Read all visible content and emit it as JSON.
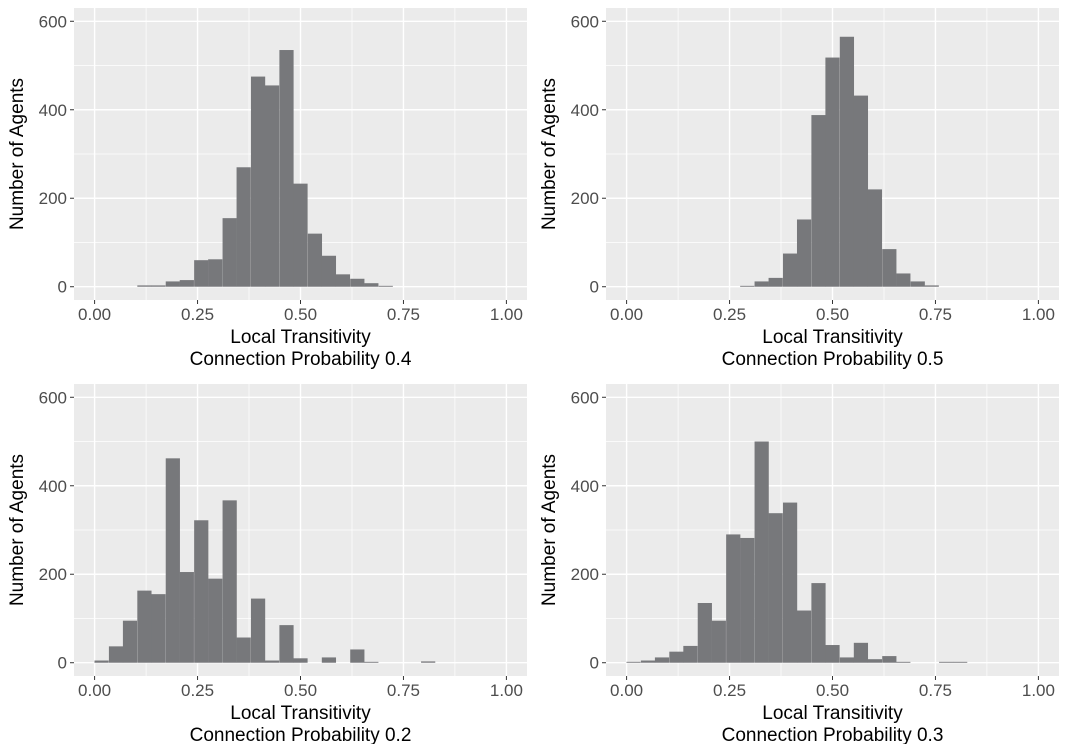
{
  "colors": {
    "panel_background": "#ebebeb",
    "grid_major": "#ffffff",
    "bar_fill": "#77787b",
    "tick_text": "#4d4d4d",
    "title_text": "#000000"
  },
  "chart_data": [
    {
      "type": "bar",
      "xlabel": "Local Transitivity",
      "xlabel2": "Connection Probability 0.4",
      "ylabel": "Number of Agents",
      "xlim": [
        -0.05,
        1.05
      ],
      "ylim": [
        -30,
        630
      ],
      "xticks": [
        0,
        0.25,
        0.5,
        0.75,
        1
      ],
      "xtick_labels": [
        "0.00",
        "0.25",
        "0.50",
        "0.75",
        "1.00"
      ],
      "yticks": [
        0,
        200,
        400,
        600
      ],
      "ytick_labels": [
        "0",
        "200",
        "400",
        "600"
      ],
      "grid": true,
      "bin_width": 0.0345,
      "bins": [
        {
          "x": 0.121,
          "y": 3
        },
        {
          "x": 0.155,
          "y": 3
        },
        {
          "x": 0.19,
          "y": 12
        },
        {
          "x": 0.224,
          "y": 15
        },
        {
          "x": 0.259,
          "y": 60
        },
        {
          "x": 0.293,
          "y": 62
        },
        {
          "x": 0.328,
          "y": 155
        },
        {
          "x": 0.362,
          "y": 270
        },
        {
          "x": 0.397,
          "y": 475
        },
        {
          "x": 0.431,
          "y": 455
        },
        {
          "x": 0.466,
          "y": 535
        },
        {
          "x": 0.5,
          "y": 233
        },
        {
          "x": 0.535,
          "y": 120
        },
        {
          "x": 0.569,
          "y": 70
        },
        {
          "x": 0.603,
          "y": 28
        },
        {
          "x": 0.638,
          "y": 18
        },
        {
          "x": 0.672,
          "y": 8
        },
        {
          "x": 0.707,
          "y": 2
        }
      ]
    },
    {
      "type": "bar",
      "xlabel": "Local Transitivity",
      "xlabel2": "Connection Probability 0.5",
      "ylabel": "Number of Agents",
      "xlim": [
        -0.05,
        1.05
      ],
      "ylim": [
        -30,
        630
      ],
      "xticks": [
        0,
        0.25,
        0.5,
        0.75,
        1
      ],
      "xtick_labels": [
        "0.00",
        "0.25",
        "0.50",
        "0.75",
        "1.00"
      ],
      "yticks": [
        0,
        200,
        400,
        600
      ],
      "ytick_labels": [
        "0",
        "200",
        "400",
        "600"
      ],
      "grid": true,
      "bin_width": 0.0345,
      "bins": [
        {
          "x": 0.293,
          "y": 2
        },
        {
          "x": 0.328,
          "y": 12
        },
        {
          "x": 0.362,
          "y": 20
        },
        {
          "x": 0.397,
          "y": 75
        },
        {
          "x": 0.431,
          "y": 152
        },
        {
          "x": 0.466,
          "y": 388
        },
        {
          "x": 0.5,
          "y": 518
        },
        {
          "x": 0.535,
          "y": 565
        },
        {
          "x": 0.569,
          "y": 432
        },
        {
          "x": 0.603,
          "y": 220
        },
        {
          "x": 0.638,
          "y": 85
        },
        {
          "x": 0.672,
          "y": 30
        },
        {
          "x": 0.707,
          "y": 12
        },
        {
          "x": 0.741,
          "y": 3
        }
      ]
    },
    {
      "type": "bar",
      "xlabel": "Local Transitivity",
      "xlabel2": "Connection Probability 0.2",
      "ylabel": "Number of Agents",
      "xlim": [
        -0.05,
        1.05
      ],
      "ylim": [
        -30,
        630
      ],
      "xticks": [
        0,
        0.25,
        0.5,
        0.75,
        1
      ],
      "xtick_labels": [
        "0.00",
        "0.25",
        "0.50",
        "0.75",
        "1.00"
      ],
      "yticks": [
        0,
        200,
        400,
        600
      ],
      "ytick_labels": [
        "0",
        "200",
        "400",
        "600"
      ],
      "grid": true,
      "bin_width": 0.0345,
      "bins": [
        {
          "x": 0.017,
          "y": 5
        },
        {
          "x": 0.052,
          "y": 37
        },
        {
          "x": 0.086,
          "y": 95
        },
        {
          "x": 0.121,
          "y": 163
        },
        {
          "x": 0.155,
          "y": 155
        },
        {
          "x": 0.19,
          "y": 462
        },
        {
          "x": 0.224,
          "y": 205
        },
        {
          "x": 0.259,
          "y": 322
        },
        {
          "x": 0.293,
          "y": 190
        },
        {
          "x": 0.328,
          "y": 367
        },
        {
          "x": 0.362,
          "y": 57
        },
        {
          "x": 0.397,
          "y": 145
        },
        {
          "x": 0.431,
          "y": 5
        },
        {
          "x": 0.466,
          "y": 85
        },
        {
          "x": 0.5,
          "y": 10
        },
        {
          "x": 0.569,
          "y": 12
        },
        {
          "x": 0.638,
          "y": 30
        },
        {
          "x": 0.672,
          "y": 2
        },
        {
          "x": 0.81,
          "y": 3
        }
      ]
    },
    {
      "type": "bar",
      "xlabel": "Local Transitivity",
      "xlabel2": "Connection Probability 0.3",
      "ylabel": "Number of Agents",
      "xlim": [
        -0.05,
        1.05
      ],
      "ylim": [
        -30,
        630
      ],
      "xticks": [
        0,
        0.25,
        0.5,
        0.75,
        1
      ],
      "xtick_labels": [
        "0.00",
        "0.25",
        "0.50",
        "0.75",
        "1.00"
      ],
      "yticks": [
        0,
        200,
        400,
        600
      ],
      "ytick_labels": [
        "0",
        "200",
        "400",
        "600"
      ],
      "grid": true,
      "bin_width": 0.0345,
      "bins": [
        {
          "x": 0.017,
          "y": 2
        },
        {
          "x": 0.052,
          "y": 5
        },
        {
          "x": 0.086,
          "y": 12
        },
        {
          "x": 0.121,
          "y": 25
        },
        {
          "x": 0.155,
          "y": 38
        },
        {
          "x": 0.19,
          "y": 135
        },
        {
          "x": 0.224,
          "y": 95
        },
        {
          "x": 0.259,
          "y": 290
        },
        {
          "x": 0.293,
          "y": 282
        },
        {
          "x": 0.328,
          "y": 500
        },
        {
          "x": 0.362,
          "y": 338
        },
        {
          "x": 0.397,
          "y": 362
        },
        {
          "x": 0.431,
          "y": 118
        },
        {
          "x": 0.466,
          "y": 180
        },
        {
          "x": 0.5,
          "y": 40
        },
        {
          "x": 0.535,
          "y": 12
        },
        {
          "x": 0.569,
          "y": 45
        },
        {
          "x": 0.603,
          "y": 8
        },
        {
          "x": 0.638,
          "y": 15
        },
        {
          "x": 0.672,
          "y": 2
        },
        {
          "x": 0.776,
          "y": 2
        },
        {
          "x": 0.81,
          "y": 2
        }
      ]
    }
  ]
}
